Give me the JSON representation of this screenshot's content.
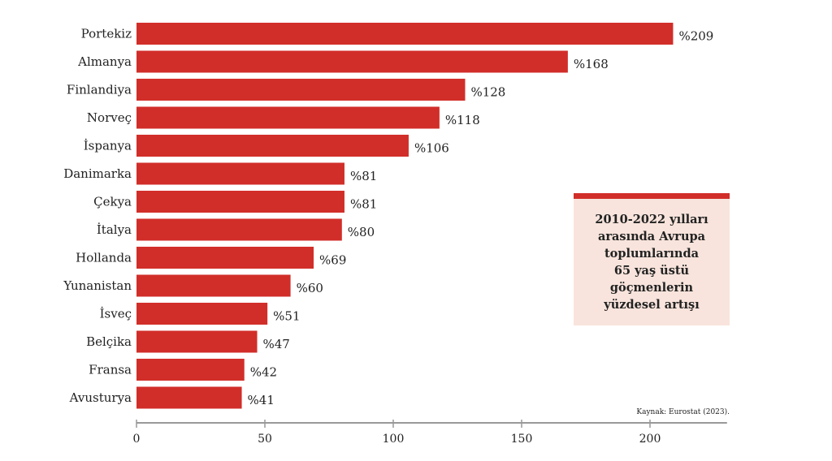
{
  "chart_data": {
    "type": "bar",
    "orientation": "horizontal",
    "categories": [
      "Portekiz",
      "Almanya",
      "Finlandiya",
      "Norveç",
      "İspanya",
      "Danimarka",
      "Çekya",
      "İtalya",
      "Hollanda",
      "Yunanistan",
      "İsveç",
      "Belçika",
      "Fransa",
      "Avusturya"
    ],
    "values": [
      209,
      168,
      128,
      118,
      106,
      81,
      81,
      80,
      69,
      60,
      51,
      47,
      42,
      41
    ],
    "value_prefix": "%",
    "xlim": [
      0,
      230
    ],
    "xticks": [
      0,
      50,
      100,
      150,
      200
    ],
    "grid": false,
    "bar_color": "#d12e29",
    "annotation": "2010-2022 yılları\narasında Avrupa\ntoplumlarında\n65 yaş üstü\ngöçmenlerin\nyüzdesel artışı",
    "source": "Kaynak: Eurostat (2023)."
  }
}
